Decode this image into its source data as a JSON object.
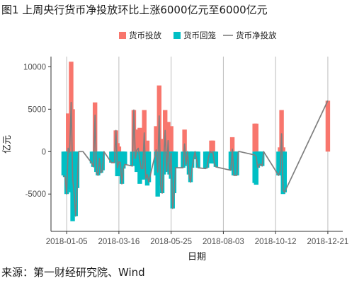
{
  "title": "图1 上周央行货币净投放环比上涨6000亿元至6000亿元",
  "source": "来源：第一财经研究院、Wind",
  "chart_data": {
    "type": "bar",
    "xlabel": "日期",
    "ylabel": "亿元",
    "ylim": [
      -9400,
      11200
    ],
    "yticks": [
      -5000,
      0,
      5000,
      10000
    ],
    "ytick_labels": [
      "-5000",
      "0",
      "5000",
      "10000"
    ],
    "xticks": [
      "2018-01-05",
      "2018-03-16",
      "2018-05-25",
      "2018-08-03",
      "2018-10-12",
      "2018-12-21"
    ],
    "grid": "vertical",
    "legend_position": "top",
    "colors": {
      "injection": "#F8766D",
      "withdrawal": "#00BFC4",
      "net": "#7f7f7f"
    },
    "x": [
      "2018-01-01",
      "2018-01-03",
      "2018-01-05",
      "2018-01-07",
      "2018-01-09",
      "2018-01-11",
      "2018-01-13",
      "2018-01-15",
      "2018-01-17",
      "2018-01-19",
      "2018-01-21",
      "2018-01-23",
      "2018-01-25",
      "2018-01-27",
      "2018-02-08",
      "2018-02-10",
      "2018-02-12",
      "2018-02-14",
      "2018-02-16",
      "2018-02-18",
      "2018-02-20",
      "2018-02-22",
      "2018-02-24",
      "2018-03-06",
      "2018-03-08",
      "2018-03-10",
      "2018-03-12",
      "2018-03-14",
      "2018-03-16",
      "2018-03-18",
      "2018-03-20",
      "2018-03-22",
      "2018-03-24",
      "2018-04-03",
      "2018-04-05",
      "2018-04-07",
      "2018-04-09",
      "2018-04-11",
      "2018-04-13",
      "2018-04-15",
      "2018-04-17",
      "2018-04-19",
      "2018-04-21",
      "2018-04-23",
      "2018-04-25",
      "2018-05-05",
      "2018-05-07",
      "2018-05-09",
      "2018-05-11",
      "2018-05-13",
      "2018-05-15",
      "2018-05-17",
      "2018-05-19",
      "2018-05-21",
      "2018-05-23",
      "2018-05-25",
      "2018-05-27",
      "2018-05-29",
      "2018-05-31",
      "2018-06-10",
      "2018-06-12",
      "2018-06-14",
      "2018-06-16",
      "2018-06-18",
      "2018-06-20",
      "2018-06-22",
      "2018-06-24",
      "2018-06-26",
      "2018-06-28",
      "2018-06-30",
      "2018-07-10",
      "2018-07-12",
      "2018-07-14",
      "2018-07-16",
      "2018-07-18",
      "2018-07-20",
      "2018-07-22",
      "2018-07-24",
      "2018-08-13",
      "2018-08-15",
      "2018-08-17",
      "2018-08-19",
      "2018-08-21",
      "2018-08-23",
      "2018-08-25",
      "2018-09-14",
      "2018-09-16",
      "2018-09-18",
      "2018-09-20",
      "2018-09-22",
      "2018-09-24",
      "2018-09-26",
      "2018-10-16",
      "2018-10-18",
      "2018-10-20",
      "2018-10-22",
      "2018-10-24",
      "2018-12-21"
    ],
    "series": [
      {
        "name": "货币投放",
        "values": [
          0,
          0,
          0,
          4500,
          4300,
          10600,
          5000,
          0,
          0,
          0,
          0,
          0,
          0,
          0,
          0,
          0,
          5800,
          0,
          0,
          0,
          0,
          0,
          0,
          0,
          0,
          0,
          2500,
          1000,
          600,
          0,
          0,
          0,
          0,
          0,
          4900,
          0,
          2600,
          2600,
          2800,
          0,
          1300,
          4900,
          0,
          1300,
          0,
          3000,
          2900,
          7800,
          0,
          0,
          1500,
          4900,
          0,
          3500,
          0,
          3000,
          0,
          0,
          0,
          0,
          2600,
          0,
          0,
          0,
          0,
          0,
          0,
          0,
          0,
          0,
          0,
          0,
          0,
          0,
          1300,
          1300,
          0,
          0,
          0,
          1700,
          0,
          0,
          0,
          0,
          0,
          3300,
          3300,
          0,
          0,
          0,
          0,
          0,
          0,
          500,
          4900,
          500,
          0,
          6000
        ]
      },
      {
        "name": "货币回笼",
        "values": [
          -2800,
          -3000,
          -5000,
          -4100,
          -4400,
          -4800,
          -8200,
          -5000,
          -7600,
          -4300,
          0,
          0,
          0,
          0,
          -1400,
          -1800,
          -1500,
          -2400,
          -2800,
          -800,
          -2500,
          -2200,
          0,
          -1300,
          -1300,
          -1300,
          0,
          -2900,
          -1800,
          -1300,
          -3800,
          -2000,
          -1500,
          -1700,
          0,
          -800,
          -2400,
          -2200,
          -3800,
          -2000,
          -3300,
          -2700,
          -3200,
          -4000,
          -3600,
          -2800,
          -5300,
          -3600,
          -4000,
          -4900,
          -2700,
          -2400,
          -2300,
          -2200,
          -2700,
          -3200,
          -6700,
          -4900,
          -1900,
          -1900,
          -1700,
          -1500,
          0,
          -2700,
          -3600,
          -1900,
          -900,
          0,
          -900,
          -1900,
          -2000,
          -1900,
          -700,
          0,
          -1400,
          -1400,
          -1400,
          -1800,
          -2200,
          -1400,
          -2800,
          -2800,
          -2800,
          0,
          0,
          -3700,
          -3900,
          -1900,
          -1500,
          -1500,
          -1700,
          0,
          -2800,
          -2800,
          -2800,
          -5000,
          -4800,
          0
        ]
      },
      {
        "name": "货币净投放",
        "values": [
          -2800,
          -3000,
          -5000,
          400,
          -100,
          5800,
          -3200,
          -5000,
          -7600,
          -4300,
          0,
          0,
          0,
          0,
          -1400,
          -1800,
          4300,
          -2400,
          -2800,
          -800,
          -2500,
          -2200,
          0,
          -1300,
          -1300,
          -1300,
          2500,
          -1900,
          -1200,
          -1300,
          -3800,
          -2000,
          -1500,
          -1700,
          4900,
          -800,
          200,
          400,
          -1000,
          -2000,
          -2000,
          2200,
          -3200,
          -2700,
          -3600,
          200,
          -2400,
          4200,
          -4000,
          -4900,
          -1200,
          2500,
          -2300,
          1300,
          -2700,
          -200,
          -6700,
          -4900,
          -1900,
          -1900,
          900,
          -1500,
          0,
          -2700,
          -3600,
          -1900,
          -900,
          0,
          -900,
          -1900,
          -2000,
          -1900,
          -700,
          0,
          -100,
          -100,
          -1400,
          -1800,
          -2200,
          300,
          -2800,
          -2800,
          -2800,
          0,
          0,
          -400,
          -600,
          -1900,
          -1500,
          -1500,
          -1700,
          0,
          -2800,
          -2300,
          2100,
          -4500,
          -4800,
          6000
        ]
      }
    ]
  }
}
